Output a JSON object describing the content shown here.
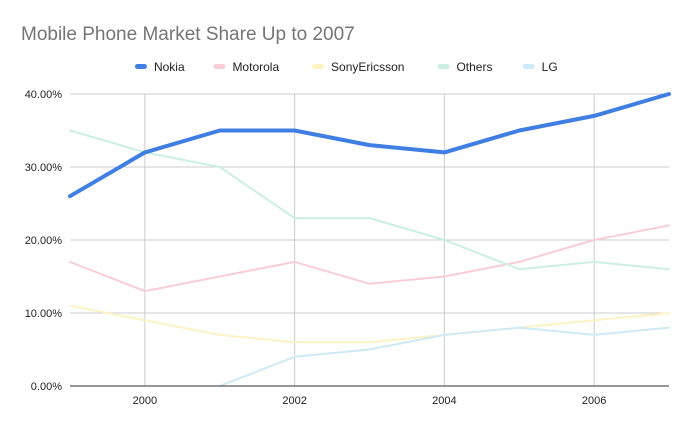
{
  "chart_data": {
    "type": "line",
    "title": "Mobile Phone Market Share Up to 2007",
    "xlabel": "",
    "ylabel": "",
    "x": [
      1999,
      2000,
      2001,
      2002,
      2003,
      2004,
      2005,
      2006,
      2007
    ],
    "xlim": [
      1999,
      2007
    ],
    "ylim": [
      0,
      40
    ],
    "x_ticks": [
      "2000",
      "2002",
      "2004",
      "2006"
    ],
    "y_ticks": [
      "0.00%",
      "10.00%",
      "20.00%",
      "30.00%",
      "40.00%"
    ],
    "grid": true,
    "legend": "top",
    "series": [
      {
        "name": "Nokia",
        "color": "#3f7fe4",
        "values": [
          26,
          32,
          35,
          35,
          33,
          32,
          35,
          37,
          40
        ]
      },
      {
        "name": "Motorola",
        "color": "#f8cdd6",
        "values": [
          17,
          13,
          15,
          17,
          14,
          15,
          17,
          20,
          22
        ]
      },
      {
        "name": "SonyEricsson",
        "color": "#fdf2c4",
        "values": [
          11,
          9,
          7,
          6,
          6,
          7,
          8,
          9,
          10
        ]
      },
      {
        "name": "Others",
        "color": "#ccefe3",
        "values": [
          35,
          32,
          30,
          23,
          23,
          20,
          16,
          17,
          16
        ]
      },
      {
        "name": "LG",
        "color": "#cfe9f6",
        "values": [
          null,
          null,
          0,
          4,
          5,
          7,
          8,
          7,
          8
        ]
      }
    ]
  }
}
